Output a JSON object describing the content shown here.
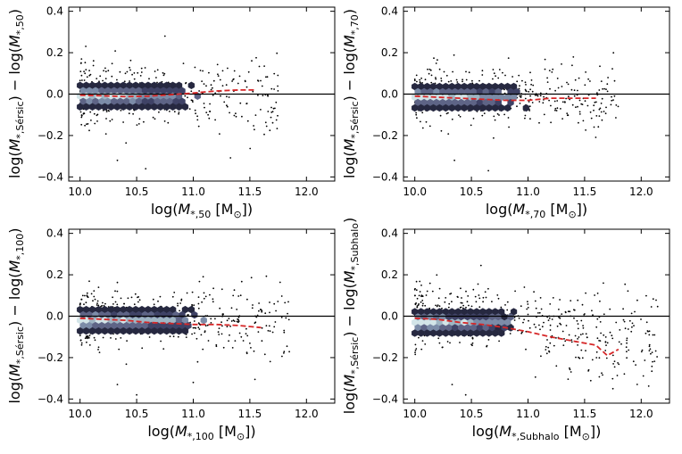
{
  "chart_data": [
    {
      "type": "scatter",
      "panel": "top-left",
      "xlabel": "log(M_{*,50} [M_⊙])",
      "ylabel": "log(M_{*,Sérsic}) − log(M_{*,50})",
      "xlabel_parts": {
        "pre": "log(",
        "m": "M",
        "sub": "*,50",
        "post": " [M",
        "sun": "⊙",
        "end": "])"
      },
      "ylabel_parts": {
        "pre": "log(",
        "m1": "M",
        "sub1": "*,Sérsic",
        "mid": ") − log(",
        "m2": "M",
        "sub2": "*,50",
        "end": ")"
      },
      "xlim": [
        9.9,
        12.25
      ],
      "ylim": [
        -0.42,
        0.42
      ],
      "xticks": [
        "10.0",
        "10.5",
        "11.0",
        "11.5",
        "12.0"
      ],
      "yticks": [
        "0.4",
        "0.2",
        "0.0",
        "−0.2",
        "−0.4"
      ],
      "zero_line": 0.0,
      "hexbin": {
        "x_range": [
          10.0,
          11.05
        ],
        "y_center": -0.01,
        "y_halfwidth": 0.045
      },
      "scatter": {
        "n": 420,
        "x_range": [
          10.0,
          11.75
        ],
        "y_spread": 0.07,
        "slope": 0.0,
        "outliers": [
          [
            10.33,
            -0.32
          ],
          [
            10.58,
            -0.36
          ],
          [
            10.75,
            0.28
          ]
        ]
      },
      "median_line": {
        "x": [
          10.0,
          10.2,
          10.4,
          10.6,
          10.8,
          11.0,
          11.2,
          11.4,
          11.55
        ],
        "y": [
          -0.005,
          -0.008,
          -0.012,
          -0.01,
          -0.003,
          0.005,
          0.015,
          0.02,
          0.02
        ]
      }
    },
    {
      "type": "scatter",
      "panel": "top-right",
      "xlabel": "log(M_{*,70} [M_⊙])",
      "ylabel": "log(M_{*,Sérsic}) − log(M_{*,70})",
      "xlabel_parts": {
        "pre": "log(",
        "m": "M",
        "sub": "*,70",
        "post": " [M",
        "sun": "⊙",
        "end": "])"
      },
      "ylabel_parts": {
        "pre": "log(",
        "m1": "M",
        "sub1": "*,Sérsic",
        "mid": ") − log(",
        "m2": "M",
        "sub2": "*,70",
        "end": ")"
      },
      "xlim": [
        9.9,
        12.25
      ],
      "ylim": [
        -0.42,
        0.42
      ],
      "xticks": [
        "10.0",
        "10.5",
        "11.0",
        "11.5",
        "12.0"
      ],
      "yticks": [
        "0.4",
        "0.2",
        "0.0",
        "−0.2",
        "−0.4"
      ],
      "zero_line": 0.0,
      "hexbin": {
        "x_range": [
          10.0,
          11.0
        ],
        "y_center": -0.015,
        "y_halfwidth": 0.045
      },
      "scatter": {
        "n": 420,
        "x_range": [
          10.0,
          11.8
        ],
        "y_spread": 0.07,
        "slope": -0.02,
        "outliers": [
          [
            10.35,
            -0.32
          ],
          [
            10.65,
            -0.37
          ],
          [
            11.15,
            0.12
          ]
        ]
      },
      "median_line": {
        "x": [
          10.0,
          10.2,
          10.4,
          10.6,
          10.8,
          11.0,
          11.2,
          11.4,
          11.6
        ],
        "y": [
          -0.01,
          -0.015,
          -0.02,
          -0.025,
          -0.03,
          -0.03,
          -0.02,
          -0.02,
          -0.02
        ]
      }
    },
    {
      "type": "scatter",
      "panel": "bottom-left",
      "xlabel": "log(M_{*,100} [M_⊙])",
      "ylabel": "log(M_{*,Sérsic}) − log(M_{*,100})",
      "xlabel_parts": {
        "pre": "log(",
        "m": "M",
        "sub": "*,100",
        "post": " [M",
        "sun": "⊙",
        "end": "])"
      },
      "ylabel_parts": {
        "pre": "log(",
        "m1": "M",
        "sub1": "*,Sérsic",
        "mid": ") − log(",
        "m2": "M",
        "sub2": "*,100",
        "end": ")"
      },
      "xlim": [
        9.9,
        12.25
      ],
      "ylim": [
        -0.42,
        0.42
      ],
      "xticks": [
        "10.0",
        "10.5",
        "11.0",
        "11.5",
        "12.0"
      ],
      "yticks": [
        "0.4",
        "0.2",
        "0.0",
        "−0.2",
        "−0.4"
      ],
      "zero_line": 0.0,
      "hexbin": {
        "x_range": [
          10.0,
          11.1
        ],
        "y_center": -0.02,
        "y_halfwidth": 0.045
      },
      "scatter": {
        "n": 420,
        "x_range": [
          10.0,
          11.85
        ],
        "y_spread": 0.07,
        "slope": -0.03,
        "outliers": [
          [
            10.33,
            -0.33
          ],
          [
            10.5,
            -0.38
          ],
          [
            11.0,
            -0.32
          ]
        ]
      },
      "median_line": {
        "x": [
          10.0,
          10.2,
          10.4,
          10.6,
          10.8,
          11.0,
          11.2,
          11.4,
          11.6
        ],
        "y": [
          -0.01,
          -0.015,
          -0.02,
          -0.03,
          -0.035,
          -0.04,
          -0.04,
          -0.045,
          -0.055
        ]
      }
    },
    {
      "type": "scatter",
      "panel": "bottom-right",
      "xlabel": "log(M_{*,Subhalo} [M_⊙])",
      "ylabel": "log(M_{*,Sérsic}) − log(M_{*,Subhalo})",
      "xlabel_parts": {
        "pre": "log(",
        "m": "M",
        "sub": "*,Subhalo",
        "post": " [M",
        "sun": "⊙",
        "end": "])"
      },
      "ylabel_parts": {
        "pre": "log(",
        "m1": "M",
        "sub1": "*,Sérsic",
        "mid": ") − log(",
        "m2": "M",
        "sub2": "*,Subhalo",
        "end": ")"
      },
      "xlim": [
        9.9,
        12.25
      ],
      "ylim": [
        -0.42,
        0.42
      ],
      "xticks": [
        "10.0",
        "10.5",
        "11.0",
        "11.5",
        "12.0"
      ],
      "yticks": [
        "0.4",
        "0.2",
        "0.0",
        "−0.2",
        "−0.4"
      ],
      "zero_line": 0.0,
      "hexbin": {
        "x_range": [
          10.0,
          10.9
        ],
        "y_center": -0.03,
        "y_halfwidth": 0.045
      },
      "scatter": {
        "n": 480,
        "x_range": [
          10.0,
          12.15
        ],
        "y_spread": 0.075,
        "slope": -0.1,
        "outliers": [
          [
            10.33,
            -0.33
          ],
          [
            10.45,
            -0.38
          ],
          [
            11.75,
            -0.35
          ],
          [
            12.1,
            -0.22
          ]
        ]
      },
      "median_line": {
        "x": [
          10.0,
          10.2,
          10.4,
          10.6,
          10.8,
          11.0,
          11.2,
          11.4,
          11.6,
          11.7,
          11.8
        ],
        "y": [
          -0.01,
          -0.015,
          -0.03,
          -0.04,
          -0.055,
          -0.075,
          -0.1,
          -0.12,
          -0.14,
          -0.19,
          -0.16
        ]
      }
    }
  ],
  "colors": {
    "median_line": "#d62728",
    "zero_line": "#000000",
    "scatter": "#000000",
    "hex_palette": [
      "#d3e5e8",
      "#9fb6c4",
      "#7c8ca8",
      "#5e6486",
      "#3f4266",
      "#262840"
    ]
  }
}
